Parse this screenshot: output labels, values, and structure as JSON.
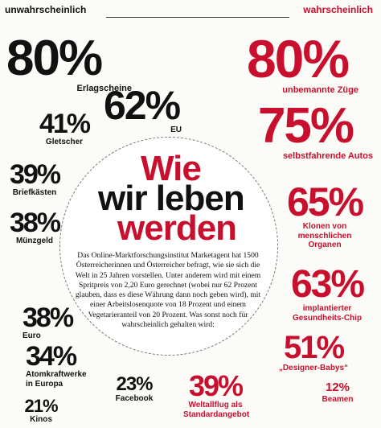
{
  "header": {
    "left_label": "unwahrscheinlich",
    "right_label": "wahrscheinlich"
  },
  "title": {
    "line1": "Wie",
    "line2": "wir leben",
    "line3": "werden"
  },
  "intro": "Das Online-Marktforschungsinstitut Marketagent hat 1500 Österreicherinnen und Österreicher befragt, wie sie sich die Welt in 25 Jahren vorstellen. Unter anderem wird mit einem Spritpreis von 2,20 Euro gerechnet (wobei nur 62 Prozent glauben, dass es diese Währung dann noch geben wird), mit einer Arbeitslosenquote von 18 Prozent und einem Vegetarieranteil von 20 Prozent. Was sonst noch für wahrscheinlich gehalten wird:",
  "unlikely": [
    {
      "value": "80%",
      "label": "Erlagscheine"
    },
    {
      "value": "62%",
      "label": "EU"
    },
    {
      "value": "41%",
      "label": "Gletscher"
    },
    {
      "value": "39%",
      "label": "Briefkästen"
    },
    {
      "value": "38%",
      "label": "Münzgeld"
    },
    {
      "value": "38%",
      "label": "Euro"
    },
    {
      "value": "34%",
      "label": "Atomkraftwerke in Europa"
    },
    {
      "value": "23%",
      "label": "Facebook"
    },
    {
      "value": "21%",
      "label": "Kinos"
    }
  ],
  "likely": [
    {
      "value": "80%",
      "label": "unbemannte Züge"
    },
    {
      "value": "75%",
      "label": "selbstfahrende Autos"
    },
    {
      "value": "65%",
      "label": "Klonen von menschlichen Organen"
    },
    {
      "value": "63%",
      "label": "implantierter Gesundheits-Chip"
    },
    {
      "value": "51%",
      "label": "„Designer-Babys“"
    },
    {
      "value": "39%",
      "label": "Weltallflug als Standardangebot"
    },
    {
      "value": "12%",
      "label": "Beamen"
    }
  ],
  "colors": {
    "accent": "#c8102e",
    "text": "#111111"
  }
}
